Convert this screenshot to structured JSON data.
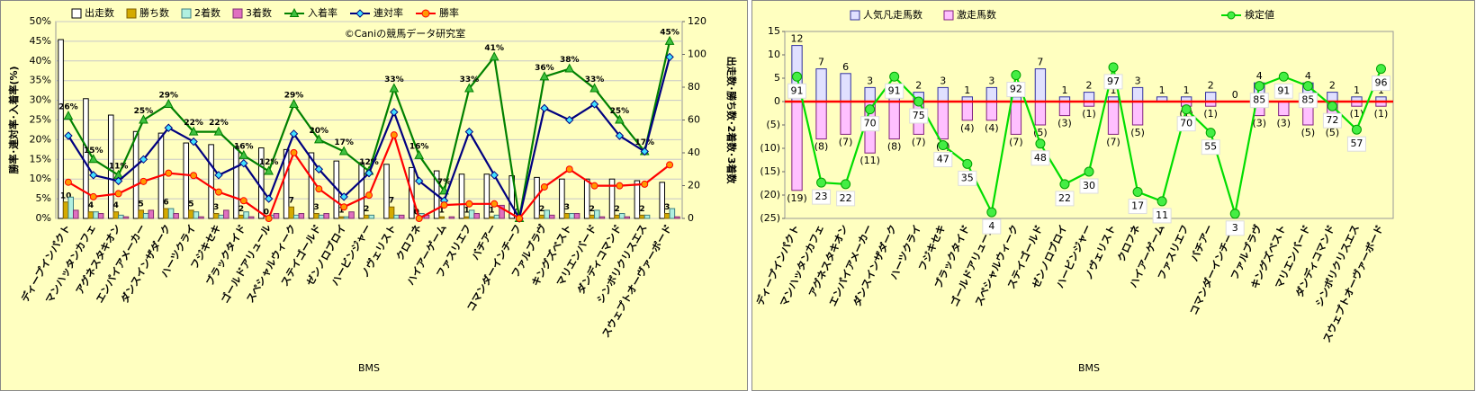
{
  "chart_data": [
    {
      "type": "combo",
      "watermark": "©Caniの競馬データ研究室",
      "x_label": "BMS",
      "y_label": "勝率･連対率･入着率(%)",
      "y2_label": "出走数･勝ち数･2着数･3着数",
      "categories": [
        "ディープインパクト",
        "マンハッタンカフェ",
        "アグネスタキオン",
        "エンパイアメーカー",
        "ダンスインザダーク",
        "ハーツクライ",
        "フジキセキ",
        "ブラックタイド",
        "ゴールドアリュール",
        "スペシャルウィーク",
        "ステイゴールド",
        "ゼンノロブロイ",
        "ハービンジャー",
        "ノヴェリスト",
        "クロフネ",
        "ハイアーゲーム",
        "ファスリエフ",
        "バチアー",
        "コマンダーインチーフ",
        "ファルブラヴ",
        "キングズベスト",
        "マリエンバード",
        "ダンディコマンド",
        "シンボリクリスエス",
        "スウェプトオーヴァーボード"
      ],
      "ylim": [
        0,
        50
      ],
      "yticks": [
        {
          "value": 0,
          "label": "0%"
        },
        {
          "value": 5,
          "label": "5%"
        },
        {
          "value": 10,
          "label": "10%"
        },
        {
          "value": 15,
          "label": "15%"
        },
        {
          "value": 20,
          "label": "20%"
        },
        {
          "value": 25,
          "label": "25%"
        },
        {
          "value": 30,
          "label": "30%"
        },
        {
          "value": 35,
          "label": "35%"
        },
        {
          "value": 40,
          "label": "40%"
        },
        {
          "value": 45,
          "label": "45%"
        },
        {
          "value": 50,
          "label": "50%"
        }
      ],
      "y2lim": [
        0,
        120
      ],
      "y2ticks": [
        0,
        20,
        40,
        60,
        80,
        100,
        120
      ],
      "grid": true,
      "legend": "top",
      "series": [
        {
          "name": "出走数",
          "type": "bar",
          "axis": "y2",
          "color": "#ffffff",
          "stroke": "#000000",
          "values": [
            109,
            73,
            63,
            53,
            52,
            46,
            45,
            44,
            43,
            42,
            40,
            35,
            34,
            33,
            31,
            29,
            27,
            27,
            26,
            25,
            24,
            24,
            24,
            23,
            22
          ]
        },
        {
          "name": "勝ち数",
          "type": "bar",
          "axis": "y2",
          "color": "#d4aa00",
          "stroke": "#806000",
          "labels": true,
          "values": [
            10,
            4,
            4,
            5,
            6,
            5,
            3,
            2,
            0,
            7,
            3,
            1,
            2,
            7,
            0,
            1,
            1,
            1,
            0,
            2,
            3,
            2,
            2,
            2,
            3
          ]
        },
        {
          "name": "2着数",
          "type": "bar",
          "axis": "y2",
          "color": "#b0f0e0",
          "stroke": "#408080",
          "values": [
            13,
            4,
            2,
            3,
            6,
            4,
            2,
            4,
            2,
            2,
            2,
            1,
            2,
            2,
            3,
            0,
            5,
            2,
            0,
            5,
            3,
            5,
            3,
            2,
            6
          ]
        },
        {
          "name": "3着数",
          "type": "bar",
          "axis": "y2",
          "color": "#e070c0",
          "stroke": "#803070",
          "values": [
            5,
            3,
            1,
            5,
            3,
            1,
            5,
            1,
            3,
            3,
            3,
            4,
            0,
            2,
            2,
            1,
            3,
            8,
            0,
            2,
            3,
            1,
            1,
            0,
            1
          ]
        },
        {
          "name": "入着率",
          "type": "line",
          "axis": "y",
          "color": "#008000",
          "marker": "triangle",
          "marker_fill": "#40c040",
          "values": [
            26,
            15,
            11,
            25,
            29,
            22,
            22,
            16,
            12,
            29,
            20,
            17,
            12,
            33,
            16,
            7,
            33,
            41,
            0,
            36,
            38,
            33,
            25,
            17,
            45
          ],
          "value_labels": [
            "26%",
            "15%",
            "11%",
            "25%",
            "29%",
            "22%",
            "22%",
            "16%",
            "12%",
            "29%",
            "20%",
            "17%",
            "12%",
            "33%",
            "16%",
            "7%",
            "33%",
            "41%",
            null,
            "36%",
            "38%",
            "33%",
            "25%",
            "17%",
            "45%"
          ]
        },
        {
          "name": "連対率",
          "type": "line",
          "axis": "y",
          "color": "#000080",
          "marker": "diamond",
          "marker_fill": "#40e0ff",
          "values": [
            21,
            11,
            9.5,
            15,
            23,
            19.5,
            11,
            14,
            5,
            21.5,
            12.5,
            5.5,
            11.5,
            27,
            9.5,
            4.5,
            22,
            11,
            0,
            28,
            25,
            29,
            21,
            17,
            41
          ]
        },
        {
          "name": "勝率",
          "type": "line",
          "axis": "y",
          "color": "#ff0000",
          "marker": "circle",
          "marker_fill": "#ff9900",
          "values": [
            9.2,
            5.5,
            6.3,
            9.4,
            11.5,
            10.9,
            6.7,
            4.5,
            0,
            16.7,
            7.5,
            2.9,
            5.9,
            21.2,
            0,
            3.4,
            3.7,
            3.7,
            0,
            8,
            12.5,
            8.3,
            8.3,
            8.7,
            13.6
          ]
        }
      ]
    },
    {
      "type": "combo",
      "x_label": "BMS",
      "categories": [
        "ディープインパクト",
        "マンハッタンカフェ",
        "アグネスタキオン",
        "エンパイアメーカー",
        "ダンスインザダーク",
        "ハーツクライ",
        "フジキセキ",
        "ブラックタイド",
        "ゴールドアリュール",
        "スペシャルウィーク",
        "ステイゴールド",
        "ゼンノロブロイ",
        "ハービンジャー",
        "ノヴェリスト",
        "クロフネ",
        "ハイアーゲーム",
        "ファスリエフ",
        "バチアー",
        "コマンダーインチーフ",
        "ファルブラヴ",
        "キングズベスト",
        "マリエンバード",
        "ダンディコマンド",
        "シンボリクリスエス",
        "スウェプトオーヴァーボード"
      ],
      "ylim": [
        -25,
        15
      ],
      "yticks": [
        {
          "value": -25,
          "label": "(25)"
        },
        {
          "value": -20,
          "label": "(20)"
        },
        {
          "value": -15,
          "label": "(15)"
        },
        {
          "value": -10,
          "label": "(10)"
        },
        {
          "value": -5,
          "label": "(5)"
        },
        0,
        5,
        10,
        15
      ],
      "y2lim": [
        0,
        120
      ],
      "zero_line": "#ff0000",
      "bar_overlap": true,
      "legend": "top",
      "series": [
        {
          "name": "人気凡走馬数",
          "type": "bar",
          "axis": "y",
          "color": "#e0e0ff",
          "stroke": "#3030a0",
          "labels": true,
          "values": [
            12,
            7,
            6,
            3,
            1,
            2,
            3,
            1,
            3,
            1,
            7,
            1,
            2,
            1,
            3,
            1,
            1,
            2,
            0,
            4,
            0,
            4,
            2,
            1,
            1
          ]
        },
        {
          "name": "激走馬数",
          "type": "bar",
          "axis": "y",
          "color": "#ffc0ff",
          "stroke": "#802080",
          "labels": true,
          "label_color": "#ff0000",
          "values": [
            -19,
            -8,
            -7,
            -11,
            -8,
            -7,
            -8,
            -4,
            -4,
            -7,
            -5,
            -3,
            -1,
            -7,
            -5,
            0,
            -1,
            -1,
            0,
            -3,
            -3,
            -5,
            -5,
            -1,
            -1
          ],
          "value_labels": [
            "(19)",
            "(8)",
            "(7)",
            "(11)",
            "(8)",
            "(7)",
            "(8)",
            "(4)",
            "(4)",
            "(7)",
            "(5)",
            "(3)",
            "(1)",
            "(7)",
            "(5)",
            null,
            "(1)",
            "(1)",
            null,
            "(3)",
            "(3)",
            "(5)",
            "(5)",
            "(1)",
            "(1)"
          ]
        },
        {
          "name": "検定値",
          "type": "line",
          "axis": "y2",
          "color": "#00dd00",
          "marker": "circle",
          "marker_fill": "#44ee44",
          "labels": true,
          "label_box": true,
          "label_color": "#008080",
          "values": [
            91,
            23,
            22,
            70,
            91,
            75,
            47,
            35,
            4,
            92,
            48,
            22,
            30,
            97,
            17,
            11,
            70,
            55,
            3,
            85,
            91,
            85,
            72,
            57,
            96
          ]
        }
      ]
    }
  ]
}
